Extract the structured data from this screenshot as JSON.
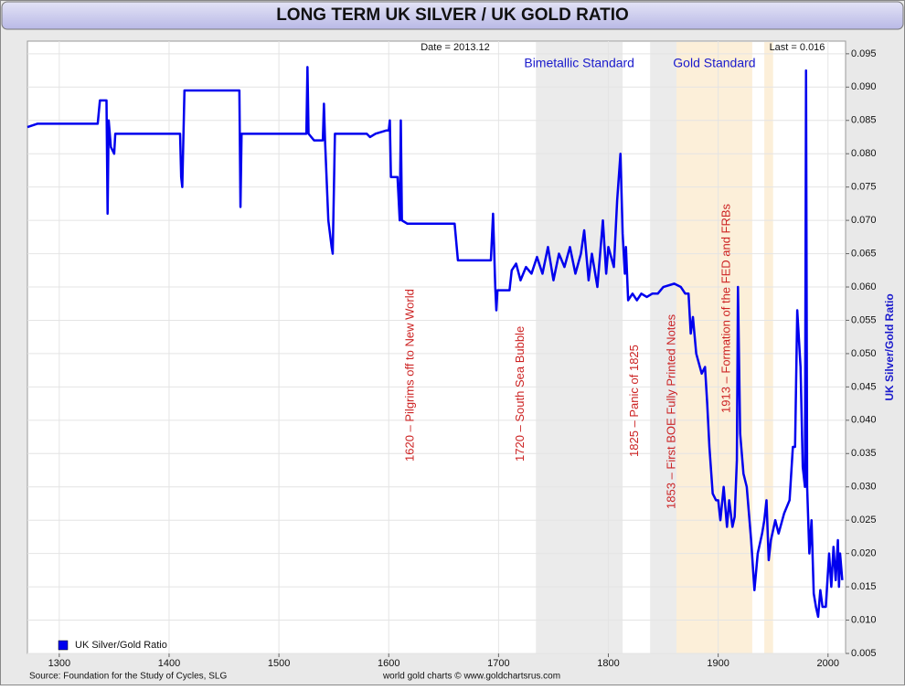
{
  "chart_data": {
    "type": "line",
    "title": "LONG TERM UK SILVER / UK GOLD RATIO",
    "date_label": "Date = 2013.12",
    "last_label": "Last = 0.016",
    "y_label": "UK Silver/Gold Ratio",
    "source": "Source: Foundation for the Study of Cycles, SLG",
    "credit": "world gold charts © www.goldchartsrus.com",
    "xlim": [
      1271,
      2016
    ],
    "xticks": [
      1300,
      1400,
      1500,
      1600,
      1700,
      1800,
      1900,
      2000
    ],
    "ylim": [
      0.005,
      0.0969
    ],
    "yticks": [
      0.005,
      {
        "value": 0.01,
        "label": "0.010"
      },
      0.015,
      {
        "value": 0.02,
        "label": "0.020"
      },
      0.025,
      {
        "value": 0.03,
        "label": "0.030"
      },
      0.035,
      {
        "value": 0.04,
        "label": "0.040"
      },
      0.045,
      {
        "value": 0.05,
        "label": "0.050"
      },
      0.055,
      {
        "value": 0.06,
        "label": "0.060"
      },
      0.065,
      {
        "value": 0.07,
        "label": "0.070"
      },
      0.075,
      {
        "value": 0.08,
        "label": "0.080"
      },
      0.085,
      {
        "value": 0.09,
        "label": "0.090"
      },
      0.095
    ],
    "grid": true,
    "legend": "bottom-left",
    "bands": [
      {
        "start": 1734,
        "end": 1813,
        "color": "#ebebeb",
        "label": "Bimetallic Standard"
      },
      {
        "start": 1838,
        "end": 1862,
        "color": "#ebebeb"
      },
      {
        "start": 1862,
        "end": 1931,
        "color": "#fcefd9",
        "label": "Gold Standard"
      },
      {
        "start": 1942,
        "end": 1950,
        "color": "#fcefd9"
      }
    ],
    "annotations": [
      {
        "x": 1620,
        "text": "1620 – Pilgrims off to New World"
      },
      {
        "x": 1720,
        "text": "1720 – South Sea Bubble"
      },
      {
        "x": 1824,
        "text": "1825 – Panic of 1825"
      },
      {
        "x": 1858,
        "text": "1853 – First BOE Fully Printed Notes"
      },
      {
        "x": 1908,
        "text": "1913 – Formation of the FED and FRBs"
      }
    ],
    "series": [
      {
        "name": "UK Silver/Gold Ratio",
        "color": "#0000ee",
        "x": [
          1271,
          1280,
          1335,
          1337,
          1343,
          1344,
          1345,
          1347,
          1350,
          1351,
          1410,
          1411,
          1412,
          1414,
          1464,
          1465,
          1466,
          1525,
          1526,
          1527,
          1532,
          1540,
          1541,
          1542,
          1545,
          1548,
          1549,
          1551,
          1580,
          1583,
          1588,
          1598,
          1600,
          1601,
          1602,
          1608,
          1610,
          1611,
          1612,
          1617,
          1660,
          1663,
          1693,
          1695,
          1697,
          1698,
          1699,
          1710,
          1712,
          1716,
          1720,
          1725,
          1730,
          1735,
          1740,
          1745,
          1750,
          1755,
          1760,
          1765,
          1770,
          1775,
          1778,
          1782,
          1785,
          1790,
          1795,
          1798,
          1800,
          1805,
          1808,
          1811,
          1813,
          1815,
          1816,
          1818,
          1822,
          1826,
          1830,
          1835,
          1840,
          1845,
          1850,
          1860,
          1866,
          1870,
          1873,
          1875,
          1877,
          1880,
          1885,
          1888,
          1890,
          1892,
          1895,
          1898,
          1900,
          1902,
          1905,
          1908,
          1910,
          1913,
          1915,
          1917,
          1918,
          1920,
          1923,
          1926,
          1930,
          1933,
          1936,
          1940,
          1942,
          1944,
          1946,
          1948,
          1952,
          1955,
          1960,
          1965,
          1968,
          1970,
          1972,
          1975,
          1977,
          1979,
          1980,
          1981,
          1983,
          1985,
          1987,
          1989,
          1991,
          1993,
          1995,
          1998,
          2001,
          2003,
          2005,
          2007,
          2009,
          2010,
          2011,
          2013
        ],
        "values": [
          0.084,
          0.0845,
          0.0845,
          0.088,
          0.088,
          0.071,
          0.085,
          0.081,
          0.08,
          0.083,
          0.083,
          0.0765,
          0.075,
          0.0895,
          0.0895,
          0.072,
          0.083,
          0.083,
          0.093,
          0.083,
          0.082,
          0.082,
          0.0875,
          0.082,
          0.07,
          0.066,
          0.065,
          0.083,
          0.083,
          0.0825,
          0.083,
          0.0835,
          0.0835,
          0.085,
          0.0765,
          0.0765,
          0.07,
          0.085,
          0.07,
          0.0695,
          0.0695,
          0.064,
          0.064,
          0.071,
          0.06,
          0.0565,
          0.0595,
          0.0595,
          0.0625,
          0.0635,
          0.061,
          0.063,
          0.062,
          0.0645,
          0.062,
          0.066,
          0.061,
          0.065,
          0.063,
          0.066,
          0.062,
          0.065,
          0.0685,
          0.061,
          0.065,
          0.06,
          0.07,
          0.062,
          0.066,
          0.063,
          0.073,
          0.08,
          0.068,
          0.062,
          0.066,
          0.058,
          0.059,
          0.058,
          0.059,
          0.0585,
          0.059,
          0.059,
          0.06,
          0.0605,
          0.06,
          0.059,
          0.059,
          0.053,
          0.0555,
          0.05,
          0.047,
          0.048,
          0.0425,
          0.036,
          0.029,
          0.028,
          0.028,
          0.025,
          0.03,
          0.024,
          0.028,
          0.024,
          0.0255,
          0.034,
          0.06,
          0.038,
          0.032,
          0.03,
          0.022,
          0.0145,
          0.02,
          0.023,
          0.025,
          0.028,
          0.019,
          0.022,
          0.025,
          0.023,
          0.026,
          0.028,
          0.036,
          0.036,
          0.0565,
          0.048,
          0.033,
          0.03,
          0.0925,
          0.03,
          0.02,
          0.025,
          0.014,
          0.012,
          0.0105,
          0.0145,
          0.012,
          0.012,
          0.02,
          0.015,
          0.021,
          0.016,
          0.022,
          0.015,
          0.02,
          0.016
        ]
      }
    ]
  }
}
